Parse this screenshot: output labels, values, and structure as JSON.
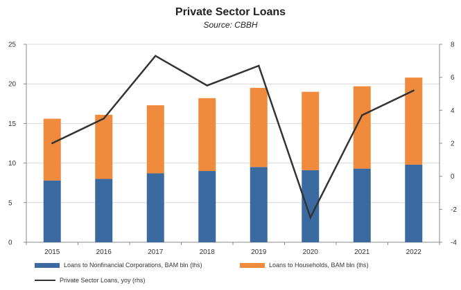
{
  "chart_data": {
    "type": "bar",
    "title": "Private Sector Loans",
    "subtitle": "Source: CBBH",
    "categories": [
      "2015",
      "2016",
      "2017",
      "2018",
      "2019",
      "2020",
      "2021",
      "2022"
    ],
    "stacked": true,
    "y_left": {
      "ylim": [
        0,
        25
      ],
      "ticks": [
        "0",
        "5",
        "10",
        "15",
        "20",
        "25"
      ]
    },
    "y_right": {
      "ylim": [
        -4,
        8
      ],
      "ticks": [
        "-4",
        "-2",
        "0",
        "2",
        "4",
        "6",
        "8"
      ]
    },
    "series": [
      {
        "name": "Loans to Nonfinancial Corporations, BAM bln (lhs)",
        "type": "bar",
        "axis": "left",
        "color": "#3b6aa0",
        "values": [
          7.8,
          8.0,
          8.7,
          9.0,
          9.5,
          9.1,
          9.3,
          9.8
        ]
      },
      {
        "name": "Loans to Households, BAM bln (lhs)",
        "type": "bar",
        "axis": "left",
        "color": "#f08a3c",
        "values": [
          7.8,
          8.1,
          8.6,
          9.2,
          10.0,
          9.9,
          10.4,
          11.0
        ]
      },
      {
        "name": "Private Sector Loans, yoy (rhs)",
        "type": "line",
        "axis": "right",
        "color": "#333333",
        "values": [
          2.0,
          3.5,
          7.3,
          5.5,
          6.7,
          -2.5,
          3.7,
          5.2
        ]
      }
    ],
    "grid": true,
    "legend_position": "bottom"
  }
}
